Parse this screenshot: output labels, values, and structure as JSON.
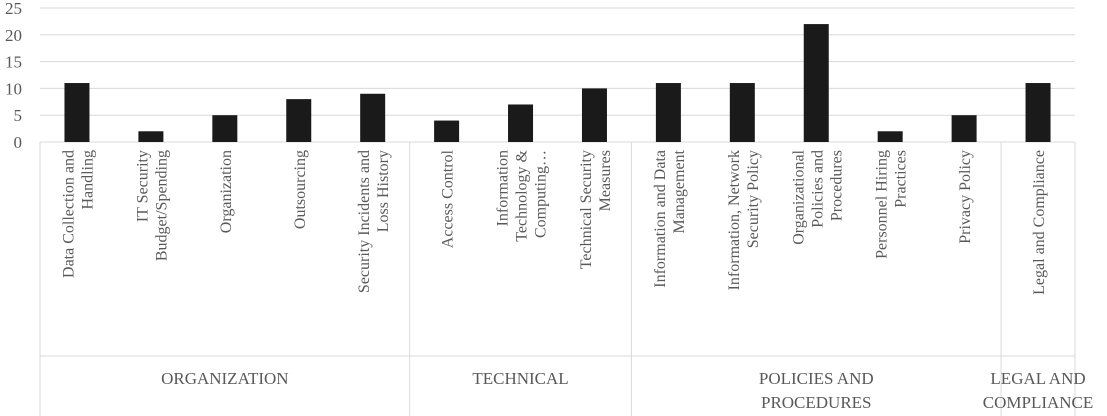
{
  "chart_data": {
    "type": "bar",
    "title": "",
    "xlabel": "",
    "ylabel": "",
    "ylim": [
      0,
      25
    ],
    "yticks": [
      0,
      5,
      10,
      15,
      20,
      25
    ],
    "grid": true,
    "legend": "none",
    "bar_color": "#1a1a1a",
    "groups": [
      {
        "name": "ORGANIZATION",
        "categories": [
          {
            "label": [
              "Data Collection and",
              "Handling"
            ],
            "value": 11
          },
          {
            "label": [
              "IT Security",
              "Budget/Spending"
            ],
            "value": 2
          },
          {
            "label": [
              "Organization"
            ],
            "value": 5
          },
          {
            "label": [
              "Outsourcing"
            ],
            "value": 8
          },
          {
            "label": [
              "Security Incidents and",
              "Loss History"
            ],
            "value": 9
          }
        ]
      },
      {
        "name": "TECHNICAL",
        "categories": [
          {
            "label": [
              "Access Control"
            ],
            "value": 4
          },
          {
            "label": [
              "Information",
              "Technology &",
              "Computing…"
            ],
            "value": 7
          },
          {
            "label": [
              "Technical Security",
              "Measures"
            ],
            "value": 10
          }
        ]
      },
      {
        "name": "POLICIES AND PROCEDURES",
        "name_lines": [
          "POLICIES AND",
          "PROCEDURES"
        ],
        "categories": [
          {
            "label": [
              "Information and Data",
              "Management"
            ],
            "value": 11
          },
          {
            "label": [
              "Information, Network",
              "Security Policy"
            ],
            "value": 11
          },
          {
            "label": [
              "Organizational",
              "Policies and",
              "Procedures"
            ],
            "value": 22
          },
          {
            "label": [
              "Personnel Hiring",
              "Practices"
            ],
            "value": 2
          },
          {
            "label": [
              "Privacy Policy"
            ],
            "value": 5
          }
        ]
      },
      {
        "name": "LEGAL AND COMPLIANCE",
        "name_lines": [
          "LEGAL AND",
          "COMPLIANCE"
        ],
        "categories": [
          {
            "label": [
              "Legal and Compliance"
            ],
            "value": 11
          }
        ]
      }
    ]
  }
}
